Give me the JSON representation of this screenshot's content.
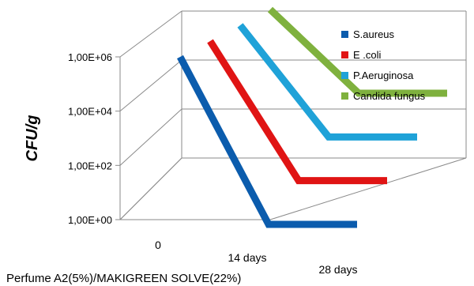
{
  "chart_data": {
    "type": "line",
    "title": "",
    "xlabel": "Perfume A2(5%)/MAKIGREEN SOLVE(22%)",
    "ylabel": "CFU/g",
    "y_scale": "log",
    "yticks": [
      "1,00E+00",
      "1,00E+02",
      "1,00E+04",
      "1,00E+06"
    ],
    "ylim": [
      1,
      1000000
    ],
    "categories": [
      "0",
      "14 days",
      "28 days"
    ],
    "legend_position": "right",
    "grid": true,
    "series": [
      {
        "name": "S.aureus",
        "color": "#0b5cad",
        "values": [
          1000000,
          1,
          1
        ]
      },
      {
        "name": "E .coli",
        "color": "#e01414",
        "values": [
          1000000,
          10,
          10
        ]
      },
      {
        "name": "P.Aeruginosa",
        "color": "#1fa2d8",
        "values": [
          1000000,
          100,
          100
        ]
      },
      {
        "name": "Candida fungus",
        "color": "#7fb13e",
        "values": [
          1000000,
          1000,
          1000
        ]
      }
    ]
  }
}
